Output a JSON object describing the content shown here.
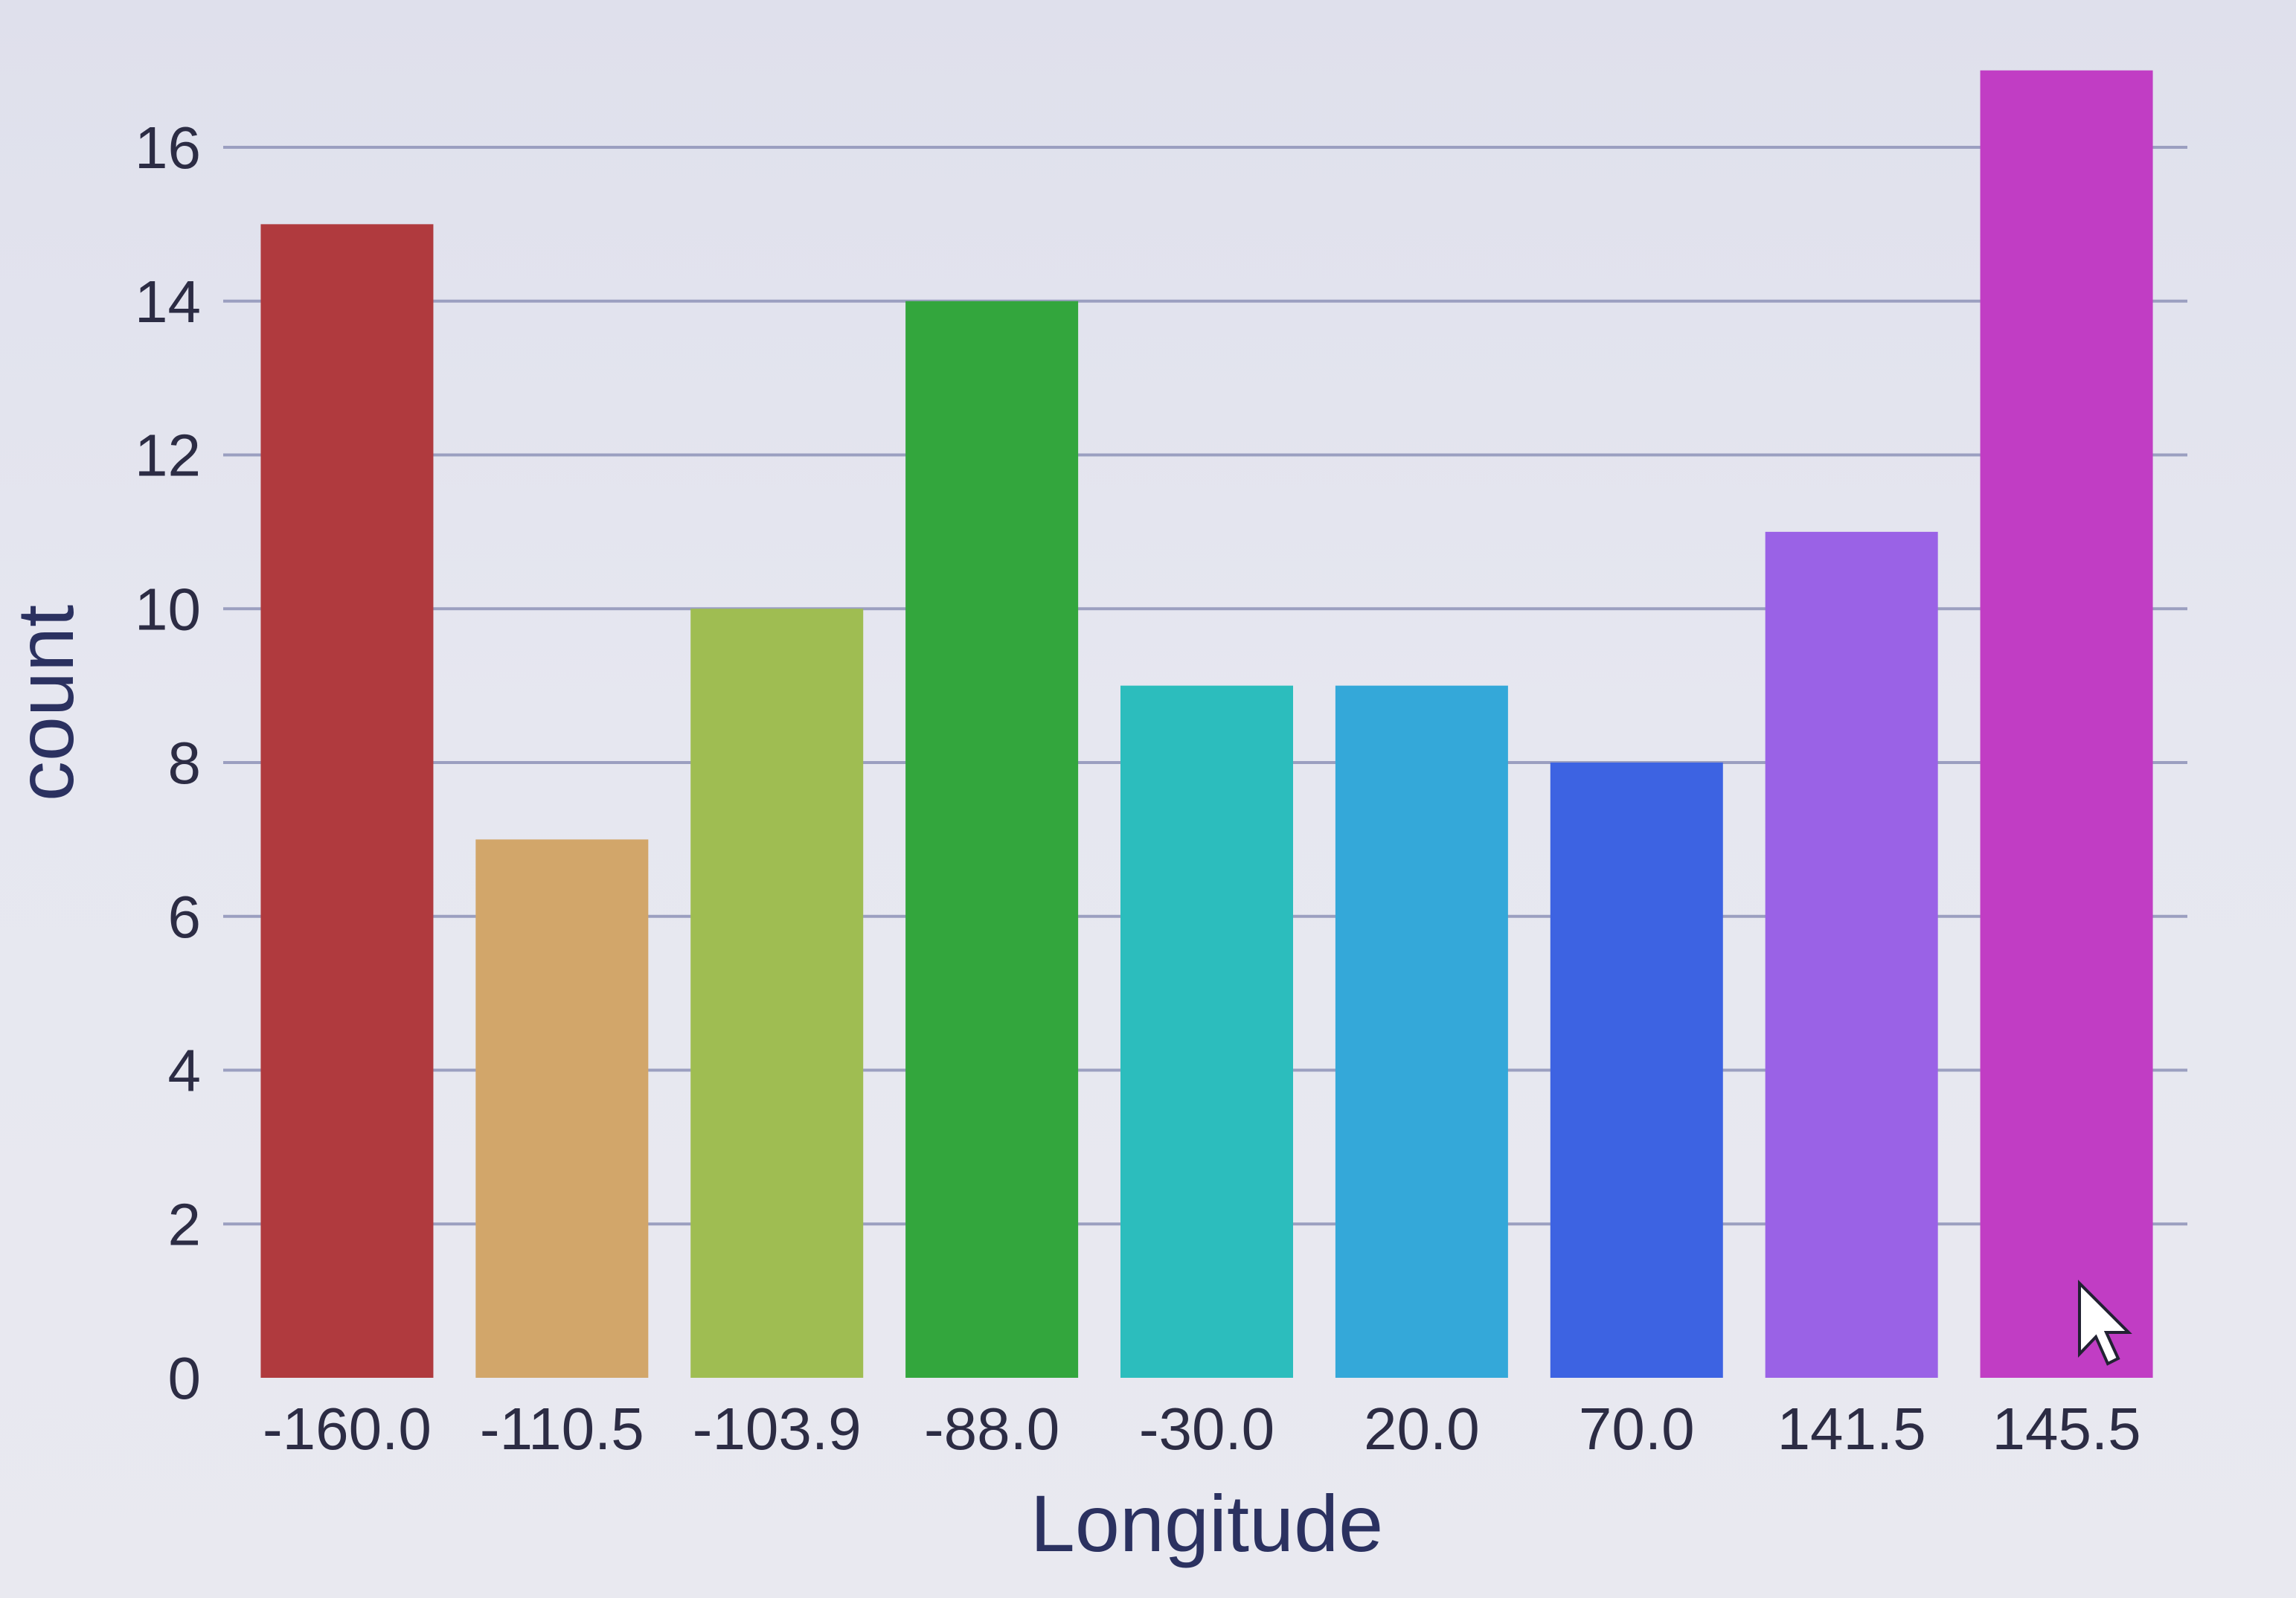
{
  "chart_data": {
    "type": "bar",
    "title": "",
    "xlabel": "Longitude",
    "ylabel": "count",
    "categories": [
      "-160.0",
      "-110.5",
      "-103.9",
      "-88.0",
      "-30.0",
      "20.0",
      "70.0",
      "141.5",
      "145.5"
    ],
    "values": [
      15,
      7,
      10,
      14,
      9,
      9,
      8,
      11,
      17
    ],
    "colors": [
      "#b03a3e",
      "#d2a66a",
      "#9fbd52",
      "#33a63d",
      "#2cbdbd",
      "#34a8d9",
      "#3d63e2",
      "#9a62e6",
      "#c13dc4"
    ],
    "ylim": [
      0,
      17
    ],
    "yticks": [
      0,
      2,
      4,
      6,
      8,
      10,
      12,
      14,
      16
    ],
    "grid": true,
    "legend": "none"
  },
  "cursor": {
    "icon": "arrow-pointer-icon"
  }
}
